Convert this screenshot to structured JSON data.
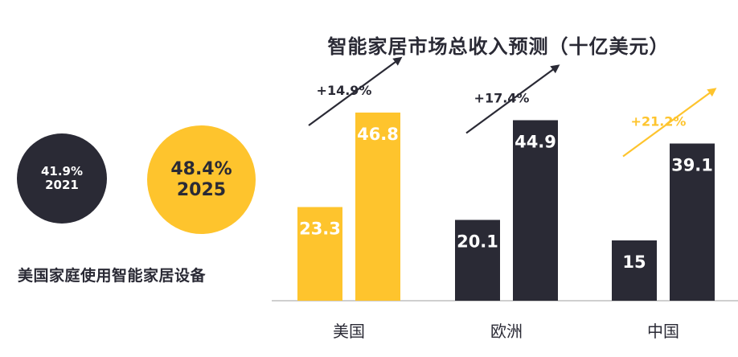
{
  "left_panel": {
    "circle_2021": {
      "pct": "41.9%",
      "year": "2021"
    },
    "circle_2025": {
      "pct": "48.4%",
      "year": "2025"
    },
    "caption": "美国家庭使用智能家居设备"
  },
  "colors": {
    "yellow": "#fec42d",
    "dark": "#2a2a35",
    "axis": "#bfbfbf"
  },
  "chart_data": {
    "type": "bar",
    "title": "智能家居市场总收入预测（十亿美元）",
    "categories": [
      "美国",
      "欧洲",
      "中国"
    ],
    "ylim": [
      0,
      50
    ],
    "series": [
      {
        "values": [
          23.3,
          20.1,
          15
        ],
        "labels": [
          "23.3",
          "20.1",
          "15"
        ]
      },
      {
        "values": [
          46.8,
          44.9,
          39.1
        ],
        "labels": [
          "46.8",
          "44.9",
          "39.1"
        ]
      }
    ],
    "growth": [
      "+14.9%",
      "+17.4%",
      "+21.2%"
    ],
    "bar_colors": [
      "#fec42d",
      "#2a2a35",
      "#2a2a35"
    ],
    "growth_colors": [
      "#2a2a35",
      "#2a2a35",
      "#fec42d"
    ],
    "grid": false,
    "legend": "none"
  }
}
